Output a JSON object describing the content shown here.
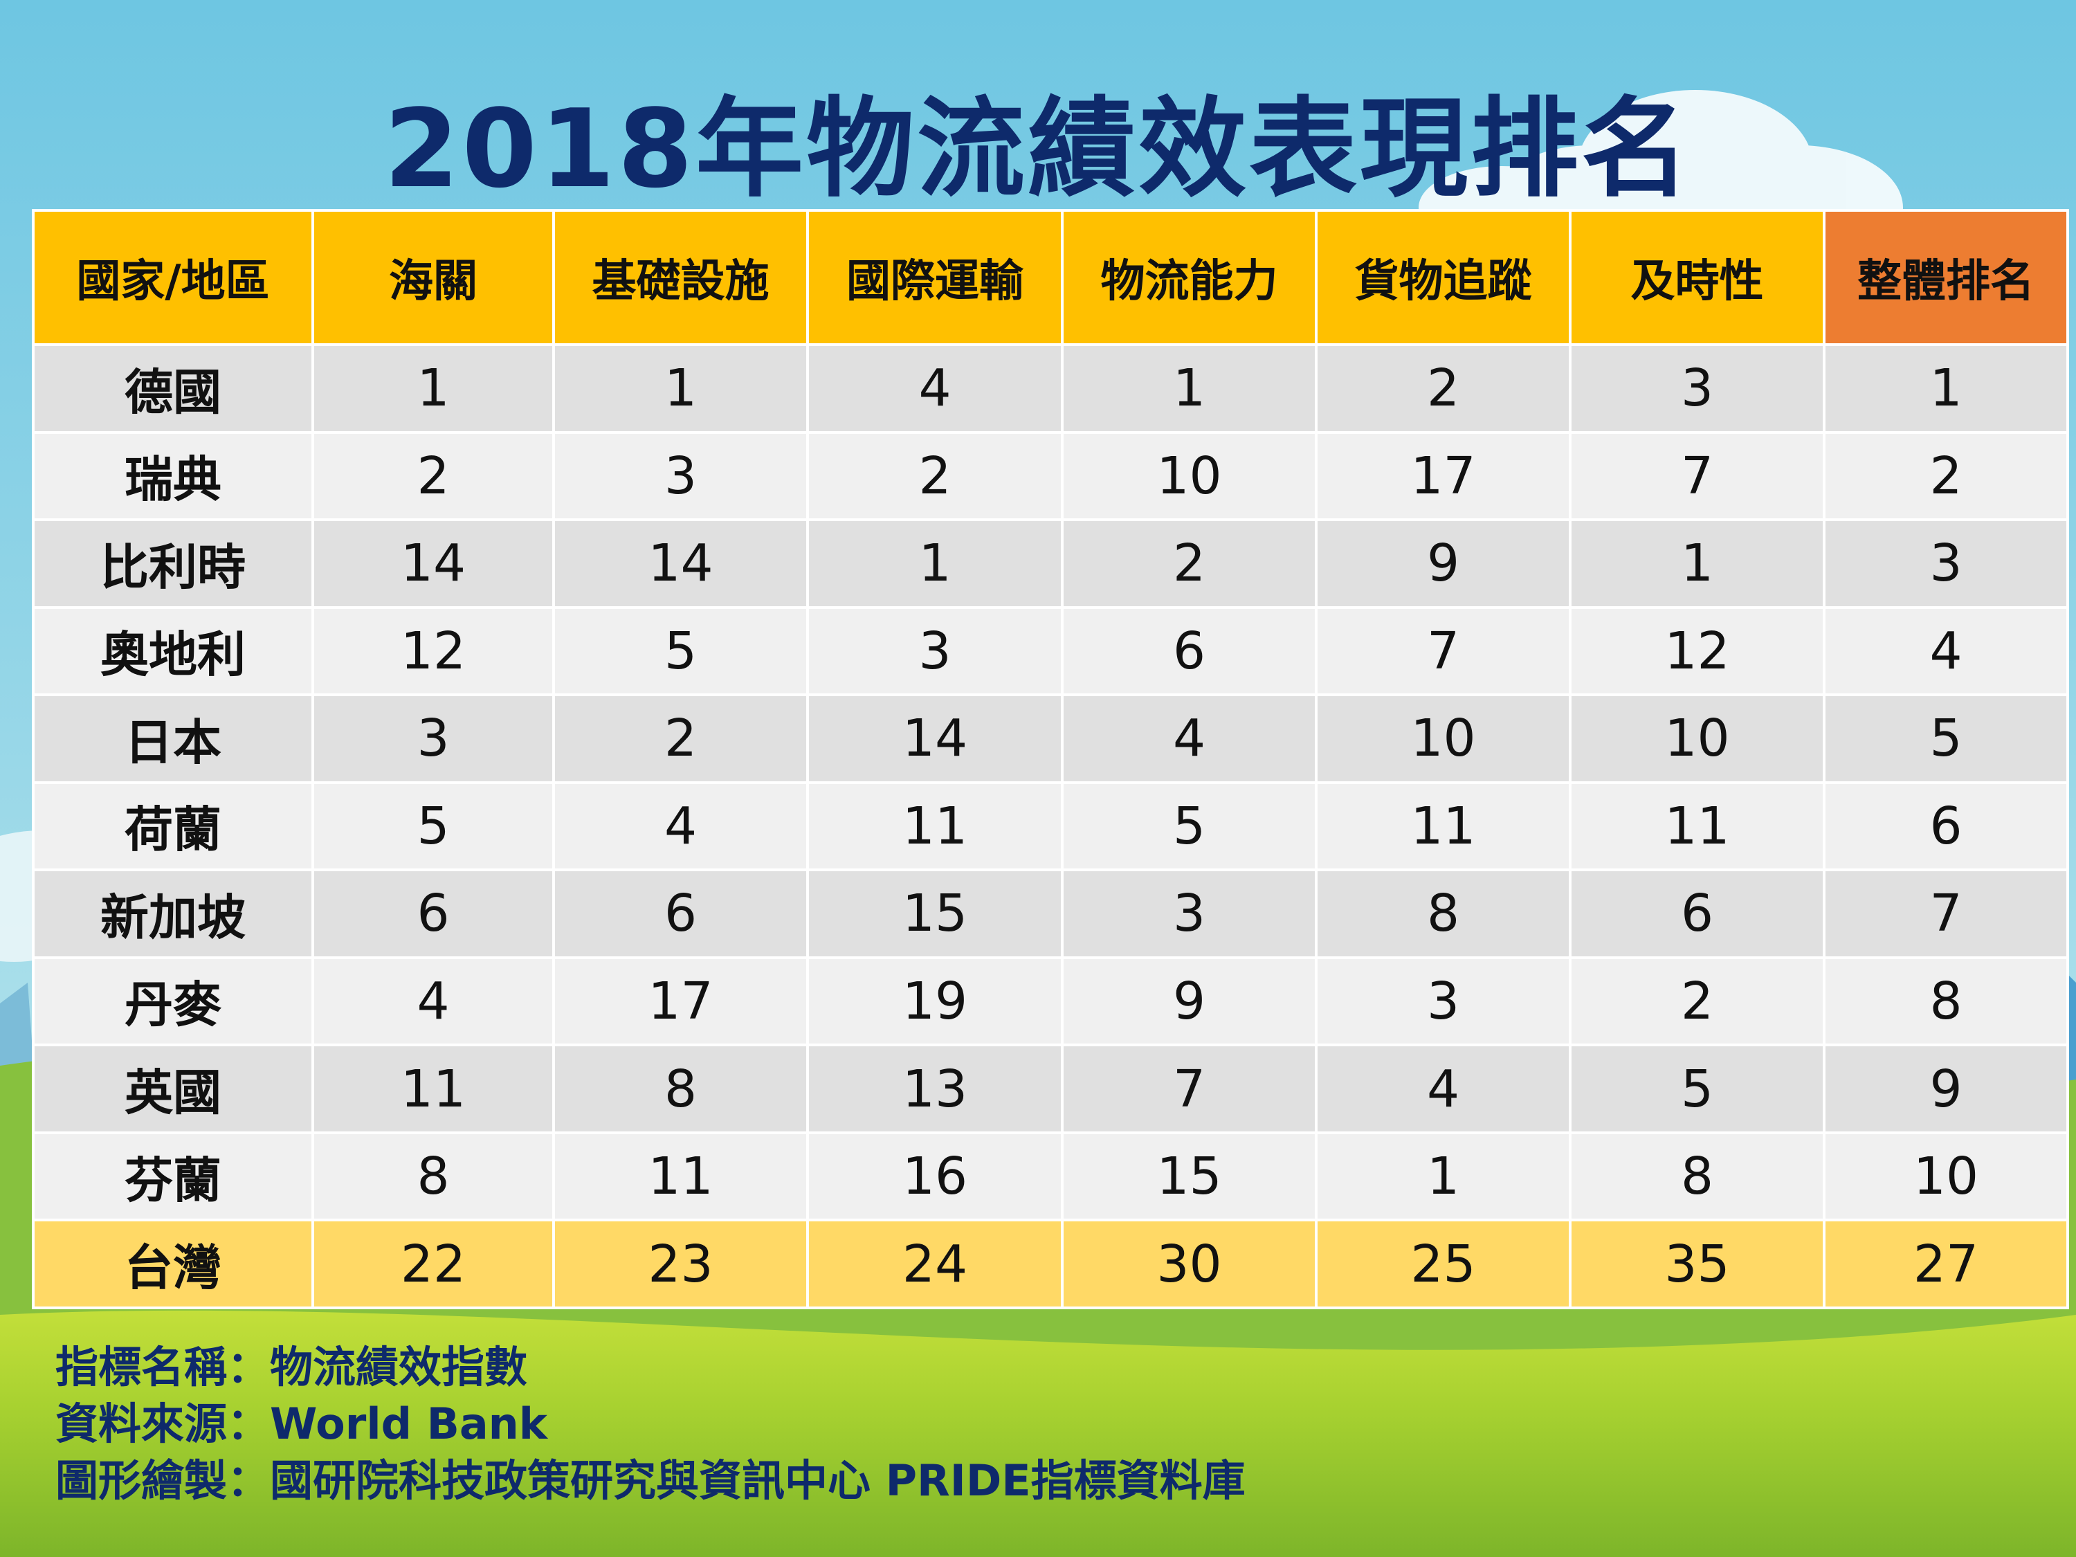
{
  "title": "2018年物流績效表現排名",
  "colors": {
    "title": "#0e2a6b",
    "header": "#ffc000",
    "header_overall": "#ed7d31",
    "row_odd": "#e0e0e0",
    "row_even": "#f0f0f0",
    "row_taiwan": "#ffd966",
    "sky": "#7ccde0",
    "grass": "#9ccc2a"
  },
  "chart_data": {
    "type": "table",
    "title": "2018年物流績效表現排名",
    "columns": [
      "國家/地區",
      "海關",
      "基礎設施",
      "國際運輸",
      "物流能力",
      "貨物追蹤",
      "及時性",
      "整體排名"
    ],
    "rows": [
      [
        "德國",
        "1",
        "1",
        "4",
        "1",
        "2",
        "3",
        "1"
      ],
      [
        "瑞典",
        "2",
        "3",
        "2",
        "10",
        "17",
        "7",
        "2"
      ],
      [
        "比利時",
        "14",
        "14",
        "1",
        "2",
        "9",
        "1",
        "3"
      ],
      [
        "奧地利",
        "12",
        "5",
        "3",
        "6",
        "7",
        "12",
        "4"
      ],
      [
        "日本",
        "3",
        "2",
        "14",
        "4",
        "10",
        "10",
        "5"
      ],
      [
        "荷蘭",
        "5",
        "4",
        "11",
        "5",
        "11",
        "11",
        "6"
      ],
      [
        "新加坡",
        "6",
        "6",
        "15",
        "3",
        "8",
        "6",
        "7"
      ],
      [
        "丹麥",
        "4",
        "17",
        "19",
        "9",
        "3",
        "2",
        "8"
      ],
      [
        "英國",
        "11",
        "8",
        "13",
        "7",
        "4",
        "5",
        "9"
      ],
      [
        "芬蘭",
        "8",
        "11",
        "16",
        "15",
        "1",
        "8",
        "10"
      ],
      [
        "台灣",
        "22",
        "23",
        "24",
        "30",
        "25",
        "35",
        "27"
      ]
    ]
  },
  "notes": [
    "指標名稱：物流績效指數",
    "資料來源：World Bank",
    "圖形繪製：國研院科技政策研究與資訊中心 PRIDE指標資料庫"
  ]
}
